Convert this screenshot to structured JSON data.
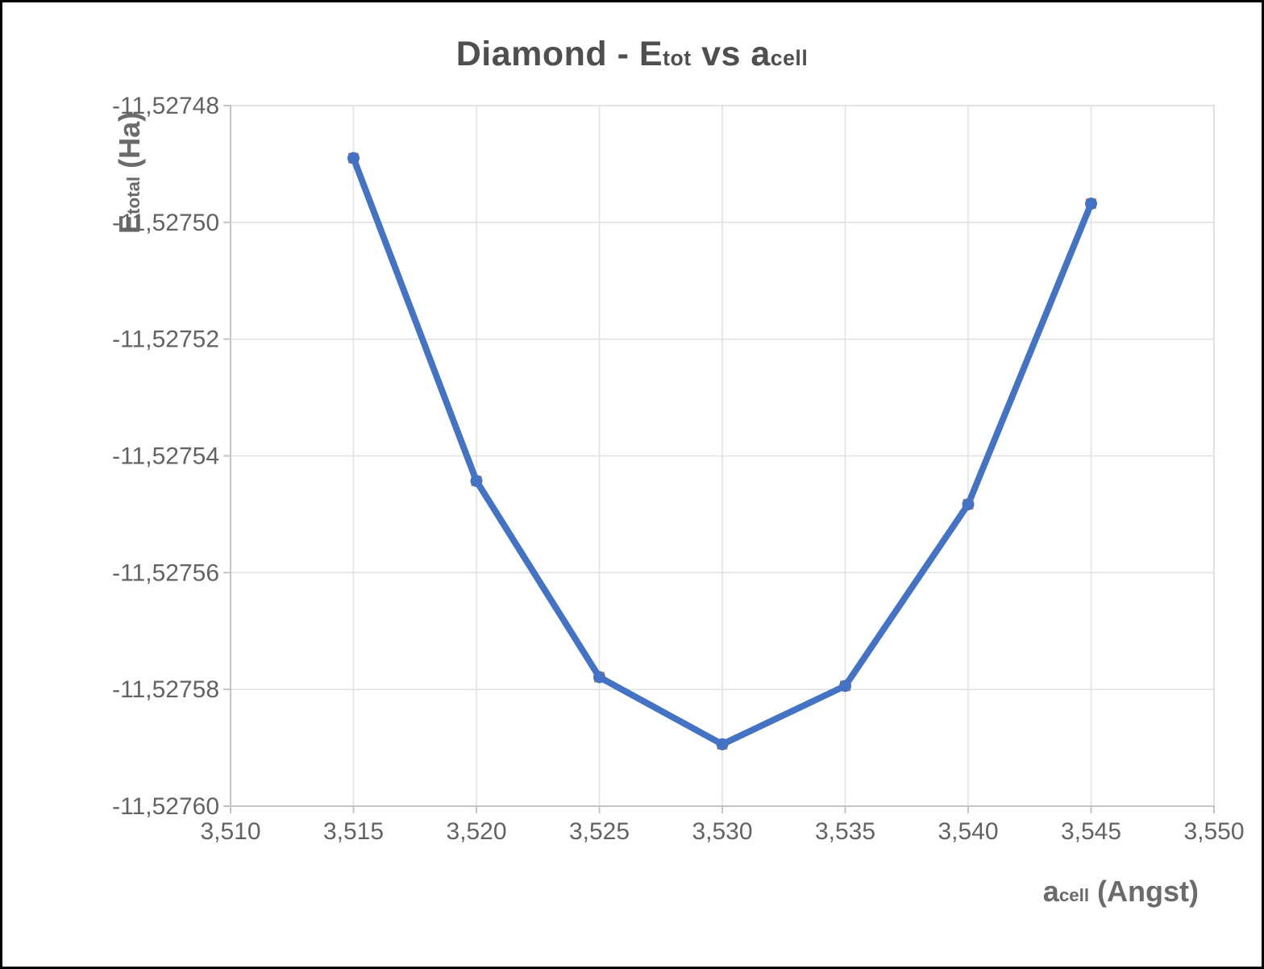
{
  "title": {
    "text1": "Diamond - E",
    "sub1": "tot",
    "text2": " vs a",
    "sub2": "cell"
  },
  "y_axis_title": {
    "text1": "E",
    "sub1": "total",
    "text2": " (Ha)"
  },
  "x_axis_title": {
    "text1": "a",
    "sub1": "cell",
    "text2": " (Angst)"
  },
  "chart_data": {
    "type": "line",
    "title": "Diamond - Etot vs acell",
    "xlabel": "acell (Angst)",
    "ylabel": "Etotal (Ha)",
    "x": [
      3.515,
      3.52,
      3.525,
      3.53,
      3.535,
      3.54,
      3.545
    ],
    "series": [
      {
        "name": "Etotal (Ha)",
        "values": [
          -11.527489,
          -11.5275443,
          -11.5275779,
          -11.5275894,
          -11.5275794,
          -11.5275483,
          -11.5274968
        ]
      }
    ],
    "xlim": [
      3.51,
      3.55
    ],
    "ylim": [
      -11.5276,
      -11.52748
    ],
    "x_tick_values": [
      3.51,
      3.515,
      3.52,
      3.525,
      3.53,
      3.535,
      3.54,
      3.545,
      3.55
    ],
    "x_tick_labels": [
      "3,510",
      "3,515",
      "3,520",
      "3,525",
      "3,530",
      "3,535",
      "3,540",
      "3,545",
      "3,550"
    ],
    "y_tick_values": [
      -11.52748,
      -11.5275,
      -11.52752,
      -11.52754,
      -11.52756,
      -11.52758,
      -11.5276
    ],
    "y_tick_labels": [
      "-11,52748",
      "-11,52750",
      "-11,52752",
      "-11,52754",
      "-11,52756",
      "-11,52758",
      "-11,52760"
    ],
    "grid": true,
    "legend": "none",
    "colors": {
      "line": "#4472C4",
      "marker": "#4472C4",
      "marker_back": "#ED7D31",
      "gridline": "#E2E2E2",
      "plot_border": "#E0E0E0",
      "axis_line": "#C4C4C4",
      "tick_text": "#636363"
    }
  }
}
